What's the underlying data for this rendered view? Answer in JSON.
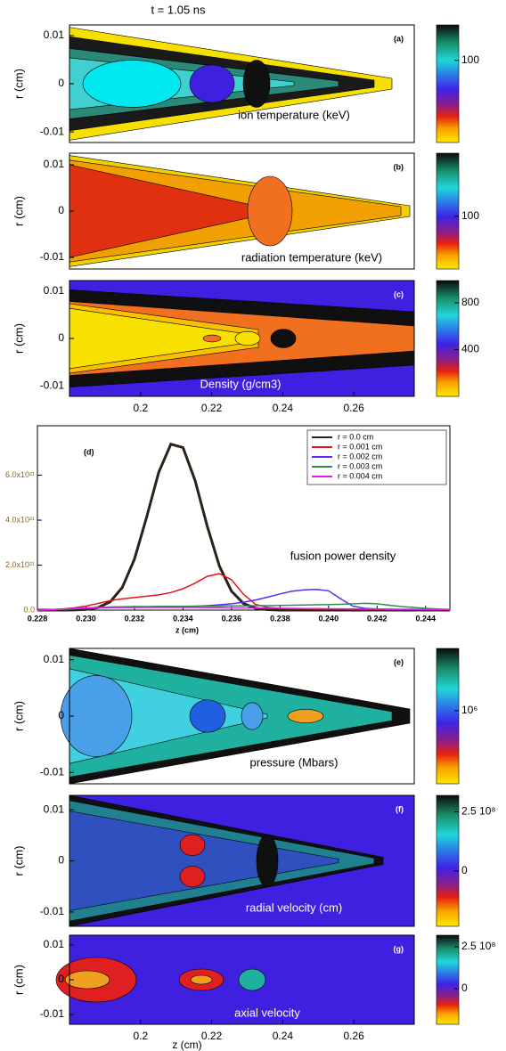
{
  "title": "t = 1.05 ns",
  "chart_data": [
    {
      "type": "contour",
      "label": "(a)",
      "annotation": "ion temperature (keV)",
      "ylabel": "r (cm)",
      "xlim": [
        0.18,
        0.277
      ],
      "ylim": [
        -0.0122,
        0.0122
      ],
      "yticks": [
        0.01,
        0,
        -0.01
      ],
      "clim": [
        0,
        143
      ],
      "cticks": [
        100
      ]
    },
    {
      "type": "contour",
      "label": "(b)",
      "annotation": "radiation temperature (keV)",
      "ylabel": "r (cm)",
      "xlim": [
        0.18,
        0.277
      ],
      "ylim": [
        -0.0125,
        0.0125
      ],
      "yticks": [
        0.01,
        0,
        -0.01
      ],
      "clim": [
        0,
        220
      ],
      "cticks": [
        100
      ]
    },
    {
      "type": "contour",
      "label": "(c)",
      "annotation": "Density (g/cm3)",
      "ylabel": "r (cm)",
      "xlim": [
        0.18,
        0.277
      ],
      "ylim": [
        -0.0122,
        0.0122
      ],
      "yticks": [
        0.01,
        0,
        -0.01
      ],
      "xticks": [
        0.2,
        0.22,
        0.24,
        0.26
      ],
      "clim": [
        0,
        990
      ],
      "cticks": [
        800,
        400
      ]
    },
    {
      "type": "line",
      "label": "(d)",
      "annotation": "fusion power density",
      "xlabel": "z (cm)",
      "legend": "upper right",
      "xlim": [
        0.228,
        0.245
      ],
      "xticks": [
        0.228,
        {
          "value": 0.23,
          "label": "0.230"
        },
        0.232,
        0.234,
        0.236,
        0.238,
        {
          "value": 0.24,
          "label": "0.240"
        },
        0.242,
        0.244
      ],
      "ylim": [
        0,
        8.2e+21
      ],
      "yticks": [
        {
          "value": 0,
          "label": "0.0"
        },
        {
          "value": 2e+21,
          "label": "2.0x10²¹"
        },
        {
          "value": 4e+21,
          "label": "4.0x10²¹"
        },
        {
          "value": 6e+21,
          "label": "6.0x10²¹"
        }
      ],
      "x": [
        0.228,
        0.2285,
        0.229,
        0.2295,
        0.23,
        0.2305,
        0.231,
        0.2315,
        0.232,
        0.2325,
        0.233,
        0.2335,
        0.234,
        0.2345,
        0.235,
        0.2355,
        0.236,
        0.2365,
        0.237,
        0.2375,
        0.238,
        0.2385,
        0.239,
        0.2395,
        0.24,
        0.2405,
        0.241,
        0.2415,
        0.242,
        0.2425,
        0.243,
        0.2435,
        0.244,
        0.2445,
        0.245
      ],
      "series": [
        {
          "name": "r = 0.0 cm",
          "color": "#2b2118",
          "values": [
            0,
            0,
            0,
            5e+18,
            3e+19,
            1.1e+20,
            3.7e+20,
            1.01e+21,
            2.27e+21,
            4.13e+21,
            6.13e+21,
            7.38e+21,
            7.23e+21,
            5.76e+21,
            3.73e+21,
            1.96e+21,
            8.4e+20,
            2.9e+20,
            8e+19,
            2e+19,
            0,
            0,
            0,
            0,
            0,
            0,
            0,
            0,
            0,
            0,
            0,
            0,
            0,
            0,
            0
          ]
        },
        {
          "name": "r = 0.001 cm",
          "color": "#e8101a",
          "values": [
            0,
            2e+19,
            5e+19,
            1e+20,
            1.8e+20,
            3e+20,
            4.2e+20,
            5e+20,
            5.6e+20,
            6.2e+20,
            6.8e+20,
            7.8e+20,
            9.5e+20,
            1.2e+21,
            1.5e+21,
            1.62e+21,
            1.35e+21,
            7e+20,
            2.5e+20,
            1.2e+20,
            8e+19,
            6e+19,
            6e+19,
            5e+19,
            5e+19,
            5e+19,
            4e+19,
            4e+19,
            4e+19,
            3e+19,
            3e+19,
            3e+19,
            3e+19,
            2e+19,
            2e+19
          ]
        },
        {
          "name": "r = 0.002 cm",
          "color": "#5a2cf0",
          "values": [
            0,
            1e+19,
            3e+19,
            6e+19,
            8e+19,
            1e+20,
            1.1e+20,
            1.2e+20,
            1.2e+20,
            1.3e+20,
            1.3e+20,
            1.4e+20,
            1.5e+20,
            1.7e+20,
            2e+20,
            2.4e+20,
            2.8e+20,
            3.5e+20,
            4.5e+20,
            5.8e+20,
            7.2e+20,
            8.4e+20,
            9e+20,
            9.2e+20,
            8.6e+20,
            5e+20,
            1.8e+20,
            8e+19,
            5e+19,
            4e+19,
            3e+19,
            3e+19,
            2e+19,
            2e+19,
            2e+19
          ]
        },
        {
          "name": "r = 0.003 cm",
          "color": "#2e8b57",
          "values": [
            0,
            1e+19,
            3e+19,
            6e+19,
            9e+19,
            1.2e+20,
            1.4e+20,
            1.5e+20,
            1.6e+20,
            1.6e+20,
            1.7e+20,
            1.7e+20,
            1.7e+20,
            1.8e+20,
            1.8e+20,
            1.8e+20,
            1.9e+20,
            1.9e+20,
            2e+20,
            2e+20,
            2.1e+20,
            2.2e+20,
            2.3e+20,
            2.4e+20,
            2.5e+20,
            2.6e+20,
            2.8e+20,
            3e+20,
            2.8e+20,
            2.2e+20,
            1.6e+20,
            1.2e+20,
            8e+19,
            5e+19,
            3e+19
          ]
        },
        {
          "name": "r = 0.004 cm",
          "color": "#e020e0",
          "values": [
            0,
            2e+19,
            5e+19,
            8e+19,
            1e+20,
            1.1e+20,
            1.2e+20,
            1.2e+20,
            1.2e+20,
            1.2e+20,
            1.2e+20,
            1.2e+20,
            1.2e+20,
            1.2e+20,
            1.1e+20,
            1.1e+20,
            1e+20,
            1e+20,
            9e+19,
            9e+19,
            8e+19,
            8e+19,
            7e+19,
            7e+19,
            6e+19,
            6e+19,
            5e+19,
            5e+19,
            5e+19,
            4e+19,
            4e+19,
            4e+19,
            3e+19,
            3e+19,
            3e+19
          ]
        }
      ]
    },
    {
      "type": "contour",
      "label": "(e)",
      "annotation": "pressure (Mbars)",
      "ylabel": "r (cm)",
      "xlim": [
        0.18,
        0.277
      ],
      "ylim": [
        -0.012,
        0.012
      ],
      "yticks": [
        0.01,
        0,
        -0.01
      ],
      "clim": [
        0,
        1850000
      ],
      "cticks": [
        {
          "value": 1000000,
          "label": "10⁶"
        }
      ]
    },
    {
      "type": "contour",
      "label": "(f)",
      "annotation": "radial velocity (cm)",
      "ylabel": "r (cm)",
      "xlim": [
        0.18,
        0.277
      ],
      "ylim": [
        -0.0128,
        0.0128
      ],
      "yticks": [
        0.01,
        0,
        -0.01
      ],
      "clim": [
        -235000000,
        320000000
      ],
      "cticks": [
        {
          "value": 250000000,
          "label": "2.5 10⁸"
        },
        0
      ]
    },
    {
      "type": "contour",
      "label": "(g)",
      "annotation": "axial velocity",
      "ylabel": "r (cm)",
      "xlabel": "z (cm)",
      "xlim": [
        0.18,
        0.277
      ],
      "ylim": [
        -0.0128,
        0.0128
      ],
      "yticks": [
        0.01,
        0,
        -0.01
      ],
      "xticks": [
        0.2,
        0.22,
        0.24,
        0.26
      ],
      "clim": [
        -213000000,
        319000000
      ],
      "cticks": [
        {
          "value": 250000000,
          "label": "2.5 10⁸"
        },
        0
      ]
    }
  ]
}
